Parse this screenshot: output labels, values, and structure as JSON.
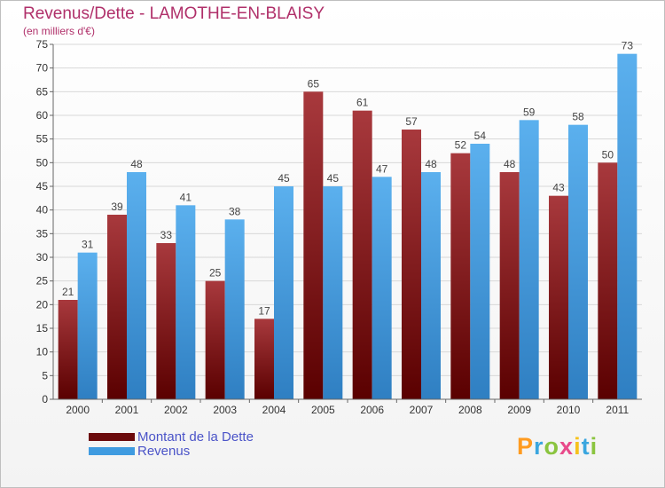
{
  "header": {
    "title": "Revenus/Dette - LAMOTHE-EN-BLAISY",
    "subtitle": "(en milliers d'€)"
  },
  "logo": {
    "text": "Proxiti"
  },
  "colors": {
    "dette": "#6b0a0c",
    "revenus": "#3f9be0",
    "title": "#b0306a",
    "legend_text": "#4b54c8"
  },
  "chart_data": {
    "type": "bar",
    "title": "Revenus/Dette - LAMOTHE-EN-BLAISY",
    "subtitle": "(en milliers d'€)",
    "categories": [
      "2000",
      "2001",
      "2002",
      "2003",
      "2004",
      "2005",
      "2006",
      "2007",
      "2008",
      "2009",
      "2010",
      "2011"
    ],
    "series": [
      {
        "name": "Montant de la Dette",
        "values": [
          21,
          39,
          33,
          25,
          17,
          65,
          61,
          57,
          52,
          48,
          43,
          50
        ]
      },
      {
        "name": "Revenus",
        "values": [
          31,
          48,
          41,
          38,
          45,
          45,
          47,
          48,
          54,
          59,
          58,
          73
        ]
      }
    ],
    "ylim": [
      0,
      75
    ],
    "yticks": [
      0,
      5,
      10,
      15,
      20,
      25,
      30,
      35,
      40,
      45,
      50,
      55,
      60,
      65,
      70,
      75
    ],
    "grid": true,
    "legend": "bottom-left",
    "data_labels": true
  }
}
